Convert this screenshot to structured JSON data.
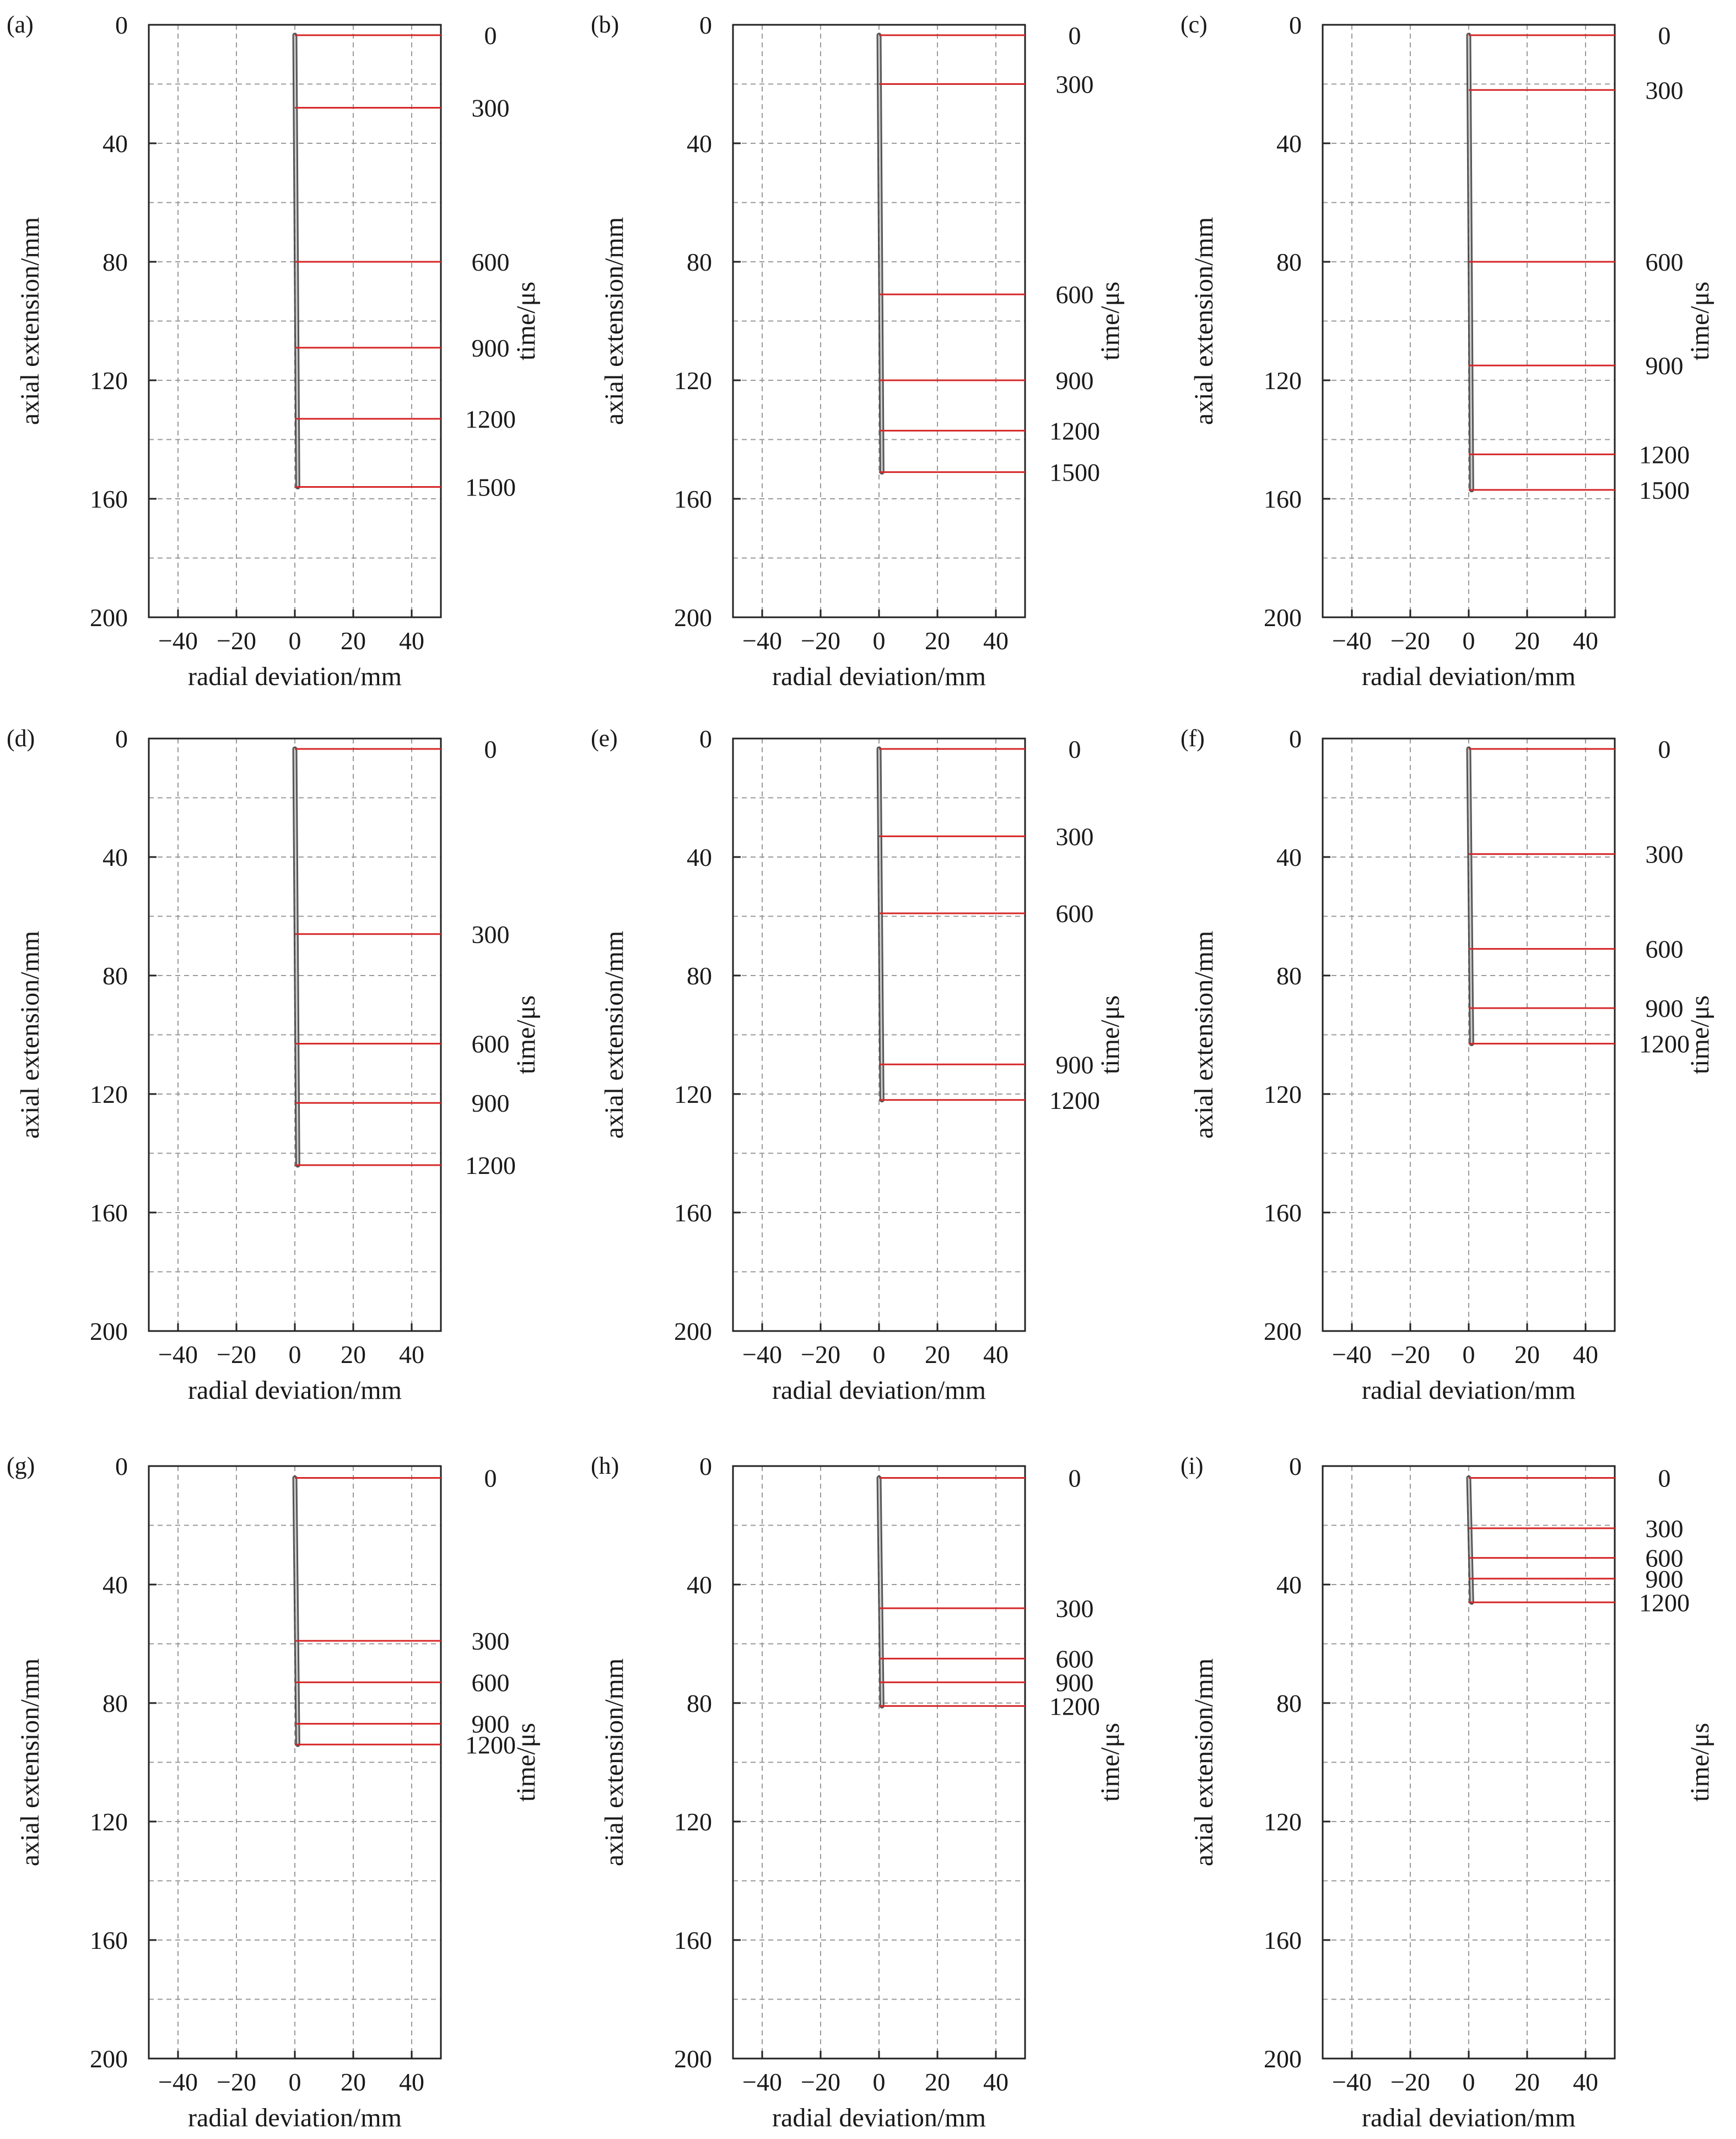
{
  "colors": {
    "marker": "#d62728",
    "streamer": "#3a3a3a",
    "grid": "#9a9a9a",
    "axis": "#222222"
  },
  "chart_data": [
    {
      "type": "scatter",
      "label": "(a)",
      "xlabel": "radial deviation/mm",
      "ylabel": "axial extension/mm",
      "y2label": "time/μs",
      "xlim": [
        -50,
        50
      ],
      "ylim": [
        0,
        200
      ],
      "y_inverted": true,
      "grid": true,
      "xticks": [
        -40,
        -20,
        0,
        20,
        40
      ],
      "yticks": [
        0,
        40,
        80,
        120,
        160,
        200
      ],
      "time_markers": [
        {
          "time": "0",
          "axial": 3.5
        },
        {
          "time": "300",
          "axial": 28
        },
        {
          "time": "600",
          "axial": 80
        },
        {
          "time": "900",
          "axial": 109
        },
        {
          "time": "1200",
          "axial": 133
        },
        {
          "time": "1500",
          "axial": 156
        }
      ],
      "tip_axial": 156
    },
    {
      "type": "scatter",
      "label": "(b)",
      "xlabel": "radial deviation/mm",
      "ylabel": "axial extension/mm",
      "y2label": "time/μs",
      "xlim": [
        -50,
        50
      ],
      "ylim": [
        0,
        200
      ],
      "y_inverted": true,
      "grid": true,
      "xticks": [
        -40,
        -20,
        0,
        20,
        40
      ],
      "yticks": [
        0,
        40,
        80,
        120,
        160,
        200
      ],
      "time_markers": [
        {
          "time": "0",
          "axial": 3.5
        },
        {
          "time": "300",
          "axial": 20
        },
        {
          "time": "600",
          "axial": 91
        },
        {
          "time": "900",
          "axial": 120
        },
        {
          "time": "1200",
          "axial": 137
        },
        {
          "time": "1500",
          "axial": 151
        }
      ],
      "tip_axial": 151
    },
    {
      "type": "scatter",
      "label": "(c)",
      "xlabel": "radial deviation/mm",
      "ylabel": "axial extension/mm",
      "y2label": "time/μs",
      "xlim": [
        -50,
        50
      ],
      "ylim": [
        0,
        200
      ],
      "y_inverted": true,
      "grid": true,
      "xticks": [
        -40,
        -20,
        0,
        20,
        40
      ],
      "yticks": [
        0,
        40,
        80,
        120,
        160,
        200
      ],
      "time_markers": [
        {
          "time": "0",
          "axial": 3.5
        },
        {
          "time": "300",
          "axial": 22
        },
        {
          "time": "600",
          "axial": 80
        },
        {
          "time": "900",
          "axial": 115
        },
        {
          "time": "1200",
          "axial": 145
        },
        {
          "time": "1500",
          "axial": 157
        }
      ],
      "tip_axial": 157
    },
    {
      "type": "scatter",
      "label": "(d)",
      "xlabel": "radial deviation/mm",
      "ylabel": "axial extension/mm",
      "y2label": "time/μs",
      "xlim": [
        -50,
        50
      ],
      "ylim": [
        0,
        200
      ],
      "y_inverted": true,
      "grid": true,
      "xticks": [
        -40,
        -20,
        0,
        20,
        40
      ],
      "yticks": [
        0,
        40,
        80,
        120,
        160,
        200
      ],
      "time_markers": [
        {
          "time": "0",
          "axial": 3.5
        },
        {
          "time": "300",
          "axial": 66
        },
        {
          "time": "600",
          "axial": 103
        },
        {
          "time": "900",
          "axial": 123
        },
        {
          "time": "1200",
          "axial": 144
        }
      ],
      "tip_axial": 144
    },
    {
      "type": "scatter",
      "label": "(e)",
      "xlabel": "radial deviation/mm",
      "ylabel": "axial extension/mm",
      "y2label": "time/μs",
      "xlim": [
        -50,
        50
      ],
      "ylim": [
        0,
        200
      ],
      "y_inverted": true,
      "grid": true,
      "xticks": [
        -40,
        -20,
        0,
        20,
        40
      ],
      "yticks": [
        0,
        40,
        80,
        120,
        160,
        200
      ],
      "time_markers": [
        {
          "time": "0",
          "axial": 3.5
        },
        {
          "time": "300",
          "axial": 33
        },
        {
          "time": "600",
          "axial": 59
        },
        {
          "time": "900",
          "axial": 110
        },
        {
          "time": "1200",
          "axial": 122
        }
      ],
      "tip_axial": 122
    },
    {
      "type": "scatter",
      "label": "(f)",
      "xlabel": "radial deviation/mm",
      "ylabel": "axial extension/mm",
      "y2label": "time/μs",
      "xlim": [
        -50,
        50
      ],
      "ylim": [
        0,
        200
      ],
      "y_inverted": true,
      "grid": true,
      "xticks": [
        -40,
        -20,
        0,
        20,
        40
      ],
      "yticks": [
        0,
        40,
        80,
        120,
        160,
        200
      ],
      "time_markers": [
        {
          "time": "0",
          "axial": 3.5
        },
        {
          "time": "300",
          "axial": 39
        },
        {
          "time": "600",
          "axial": 71
        },
        {
          "time": "900",
          "axial": 91
        },
        {
          "time": "1200",
          "axial": 103
        }
      ],
      "tip_axial": 103
    },
    {
      "type": "scatter",
      "label": "(g)",
      "xlabel": "radial deviation/mm",
      "ylabel": "axial extension/mm",
      "y2label": "time/μs",
      "xlim": [
        -50,
        50
      ],
      "ylim": [
        0,
        200
      ],
      "y_inverted": true,
      "grid": true,
      "xticks": [
        -40,
        -20,
        0,
        20,
        40
      ],
      "yticks": [
        0,
        40,
        80,
        120,
        160,
        200
      ],
      "time_markers": [
        {
          "time": "0",
          "axial": 4
        },
        {
          "time": "300",
          "axial": 59
        },
        {
          "time": "600",
          "axial": 73
        },
        {
          "time": "900",
          "axial": 87
        },
        {
          "time": "1200",
          "axial": 94
        }
      ],
      "tip_axial": 94
    },
    {
      "type": "scatter",
      "label": "(h)",
      "xlabel": "radial deviation/mm",
      "ylabel": "axial extension/mm",
      "y2label": "time/μs",
      "xlim": [
        -50,
        50
      ],
      "ylim": [
        0,
        200
      ],
      "y_inverted": true,
      "grid": true,
      "xticks": [
        -40,
        -20,
        0,
        20,
        40
      ],
      "yticks": [
        0,
        40,
        80,
        120,
        160,
        200
      ],
      "time_markers": [
        {
          "time": "0",
          "axial": 4
        },
        {
          "time": "300",
          "axial": 48
        },
        {
          "time": "600",
          "axial": 65
        },
        {
          "time": "900",
          "axial": 73
        },
        {
          "time": "1200",
          "axial": 81
        }
      ],
      "tip_axial": 81
    },
    {
      "type": "scatter",
      "label": "(i)",
      "xlabel": "radial deviation/mm",
      "ylabel": "axial extension/mm",
      "y2label": "time/μs",
      "xlim": [
        -50,
        50
      ],
      "ylim": [
        0,
        200
      ],
      "y_inverted": true,
      "grid": true,
      "xticks": [
        -40,
        -20,
        0,
        20,
        40
      ],
      "yticks": [
        0,
        40,
        80,
        120,
        160,
        200
      ],
      "time_markers": [
        {
          "time": "0",
          "axial": 4
        },
        {
          "time": "300",
          "axial": 21
        },
        {
          "time": "600",
          "axial": 31
        },
        {
          "time": "900",
          "axial": 38
        },
        {
          "time": "1200",
          "axial": 46
        }
      ],
      "tip_axial": 46
    }
  ]
}
